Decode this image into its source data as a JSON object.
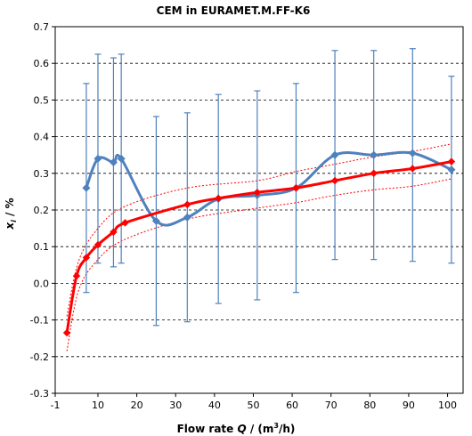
{
  "chart_data": {
    "type": "line",
    "title": "CEM in EURAMET.M.FF-K6",
    "xlabel_parts": [
      "Flow rate ",
      "Q",
      " / (m",
      "3",
      "/h)"
    ],
    "ylabel_parts": [
      "x",
      "i",
      " / %"
    ],
    "xlim": [
      -1,
      104
    ],
    "ylim": [
      -0.3,
      0.7
    ],
    "x_ticks": [
      -1,
      10,
      20,
      30,
      40,
      50,
      60,
      70,
      80,
      90,
      100
    ],
    "y_ticks": [
      -0.3,
      -0.2,
      -0.1,
      0.0,
      0.1,
      0.2,
      0.3,
      0.4,
      0.5,
      0.6,
      0.7
    ],
    "x_tick_labels": [
      "-1",
      "10",
      "20",
      "30",
      "40",
      "50",
      "60",
      "70",
      "80",
      "90",
      "100"
    ],
    "y_tick_labels": [
      "-0.3",
      "-0.2",
      "-0.1",
      "0.0",
      "0.1",
      "0.2",
      "0.3",
      "0.4",
      "0.5",
      "0.6",
      "0.7"
    ],
    "grid": "horizontal dashed",
    "colors": {
      "measurement": "#4f81bd",
      "reference": "#ff0000",
      "grid": "#000000"
    },
    "series": [
      {
        "key": "measurement",
        "points": [
          {
            "x": 7,
            "y": 0.26,
            "err_low": -0.025,
            "err_high": 0.545
          },
          {
            "x": 10,
            "y": 0.34,
            "err_low": 0.055,
            "err_high": 0.625
          },
          {
            "x": 14,
            "y": 0.33,
            "err_low": 0.045,
            "err_high": 0.615
          },
          {
            "x": 16,
            "y": 0.34,
            "err_low": 0.055,
            "err_high": 0.625
          },
          {
            "x": 25,
            "y": 0.17,
            "err_low": -0.115,
            "err_high": 0.455
          },
          {
            "x": 33,
            "y": 0.18,
            "err_low": -0.105,
            "err_high": 0.465
          },
          {
            "x": 41,
            "y": 0.23,
            "err_low": -0.055,
            "err_high": 0.515
          },
          {
            "x": 51,
            "y": 0.24,
            "err_low": -0.045,
            "err_high": 0.525
          },
          {
            "x": 61,
            "y": 0.26,
            "err_low": -0.025,
            "err_high": 0.545
          },
          {
            "x": 71,
            "y": 0.35,
            "err_low": 0.065,
            "err_high": 0.635
          },
          {
            "x": 81,
            "y": 0.35,
            "err_low": 0.065,
            "err_high": 0.635
          },
          {
            "x": 91,
            "y": 0.355,
            "err_low": 0.06,
            "err_high": 0.64
          },
          {
            "x": 101,
            "y": 0.31,
            "err_low": 0.055,
            "err_high": 0.565
          }
        ]
      },
      {
        "key": "reference",
        "points": [
          {
            "x": 2,
            "y": -0.135
          },
          {
            "x": 4.5,
            "y": 0.02
          },
          {
            "x": 7,
            "y": 0.07
          },
          {
            "x": 10,
            "y": 0.105
          },
          {
            "x": 14,
            "y": 0.14
          },
          {
            "x": 17,
            "y": 0.165
          },
          {
            "x": 33,
            "y": 0.215
          },
          {
            "x": 41,
            "y": 0.232
          },
          {
            "x": 51,
            "y": 0.248
          },
          {
            "x": 61,
            "y": 0.26
          },
          {
            "x": 71,
            "y": 0.28
          },
          {
            "x": 81,
            "y": 0.3
          },
          {
            "x": 91,
            "y": 0.313
          },
          {
            "x": 101,
            "y": 0.332
          }
        ]
      },
      {
        "key": "reference_upper",
        "points": [
          {
            "x": 2,
            "y": -0.09
          },
          {
            "x": 5,
            "y": 0.06
          },
          {
            "x": 10,
            "y": 0.15
          },
          {
            "x": 17,
            "y": 0.21
          },
          {
            "x": 33,
            "y": 0.26
          },
          {
            "x": 51,
            "y": 0.28
          },
          {
            "x": 61,
            "y": 0.305
          },
          {
            "x": 71,
            "y": 0.325
          },
          {
            "x": 81,
            "y": 0.345
          },
          {
            "x": 91,
            "y": 0.36
          },
          {
            "x": 101,
            "y": 0.38
          }
        ]
      },
      {
        "key": "reference_lower",
        "points": [
          {
            "x": 2,
            "y": -0.185
          },
          {
            "x": 5,
            "y": -0.02
          },
          {
            "x": 10,
            "y": 0.065
          },
          {
            "x": 17,
            "y": 0.12
          },
          {
            "x": 33,
            "y": 0.175
          },
          {
            "x": 51,
            "y": 0.205
          },
          {
            "x": 61,
            "y": 0.22
          },
          {
            "x": 71,
            "y": 0.24
          },
          {
            "x": 81,
            "y": 0.255
          },
          {
            "x": 91,
            "y": 0.265
          },
          {
            "x": 101,
            "y": 0.285
          }
        ]
      }
    ]
  }
}
